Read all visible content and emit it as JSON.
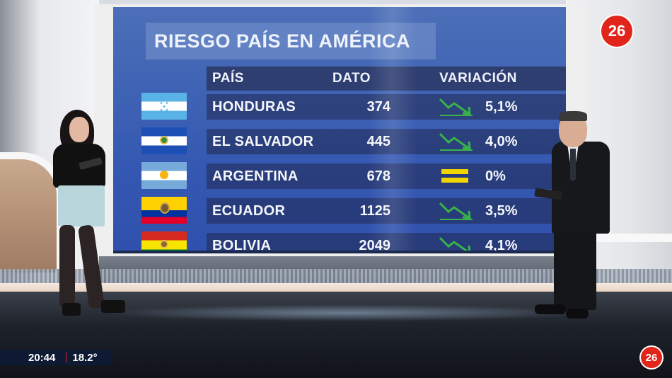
{
  "graphic": {
    "title": "RIESGO PAÍS EN AMÉRICA",
    "headers": {
      "country": "PAÍS",
      "value": "DATO",
      "variation": "VARIACIÓN"
    },
    "rows": [
      {
        "country": "HONDURAS",
        "value": "374",
        "trend": "down",
        "variation": "5,1%",
        "flag": "honduras"
      },
      {
        "country": "EL SALVADOR",
        "value": "445",
        "trend": "down",
        "variation": "4,0%",
        "flag": "el-salvador"
      },
      {
        "country": "ARGENTINA",
        "value": "678",
        "trend": "flat",
        "variation": "0%",
        "flag": "argentina"
      },
      {
        "country": "ECUADOR",
        "value": "1125",
        "trend": "down",
        "variation": "3,5%",
        "flag": "ecuador"
      },
      {
        "country": "BOLIVIA",
        "value": "2049",
        "trend": "down",
        "variation": "4,1%",
        "flag": "bolivia"
      }
    ],
    "colors": {
      "trend_down": "#37b34a",
      "trend_flat": "#f2d500"
    }
  },
  "channel": {
    "logo_text": "26",
    "logo_color": "#e1251b"
  },
  "ticker": {
    "time": "20:44",
    "temperature": "18.2°"
  }
}
